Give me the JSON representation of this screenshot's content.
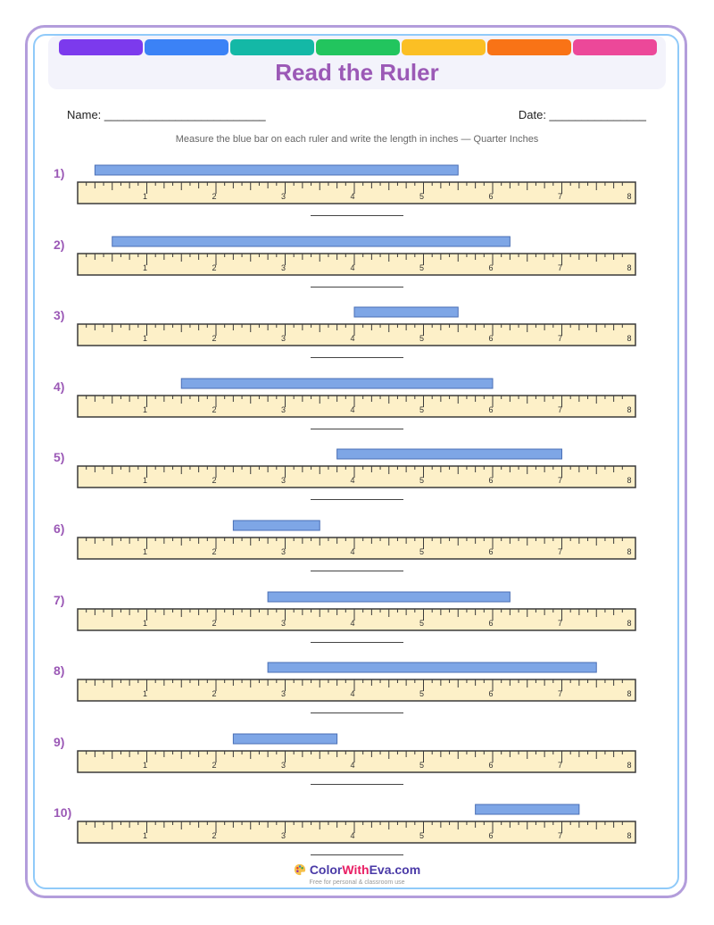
{
  "header": {
    "title": "Read the Ruler",
    "rainbow_colors": [
      "#7c3aed",
      "#3b82f6",
      "#14b8a6",
      "#22c55e",
      "#fbbf24",
      "#f97316",
      "#ec4899"
    ]
  },
  "fields": {
    "name_label": "Name: _________________________",
    "date_label": "Date: _______________"
  },
  "instructions": "Measure the blue bar on each ruler and write the length in inches — Quarter Inches",
  "ruler": {
    "inches": 8,
    "subdivision": "eighth",
    "labels": [
      "1",
      "2",
      "3",
      "4",
      "5",
      "6",
      "7",
      "8"
    ],
    "fill_color": "#fdf0c8",
    "bar_color": "#7ea6e6"
  },
  "problems": [
    {
      "label": "1)",
      "bar_start": 0.25,
      "bar_end": 5.5
    },
    {
      "label": "2)",
      "bar_start": 0.5,
      "bar_end": 6.25
    },
    {
      "label": "3)",
      "bar_start": 4.0,
      "bar_end": 5.5
    },
    {
      "label": "4)",
      "bar_start": 1.5,
      "bar_end": 6.0
    },
    {
      "label": "5)",
      "bar_start": 3.75,
      "bar_end": 7.0
    },
    {
      "label": "6)",
      "bar_start": 2.25,
      "bar_end": 3.5
    },
    {
      "label": "7)",
      "bar_start": 2.75,
      "bar_end": 6.25
    },
    {
      "label": "8)",
      "bar_start": 2.75,
      "bar_end": 7.5
    },
    {
      "label": "9)",
      "bar_start": 2.25,
      "bar_end": 3.75
    },
    {
      "label": "10)",
      "bar_start": 5.75,
      "bar_end": 7.25
    }
  ],
  "footer": {
    "brand_color": "Color",
    "brand_with": "With",
    "brand_eva": "Eva.com",
    "tagline": "Free for personal & classroom use",
    "icon": "palette-icon"
  }
}
